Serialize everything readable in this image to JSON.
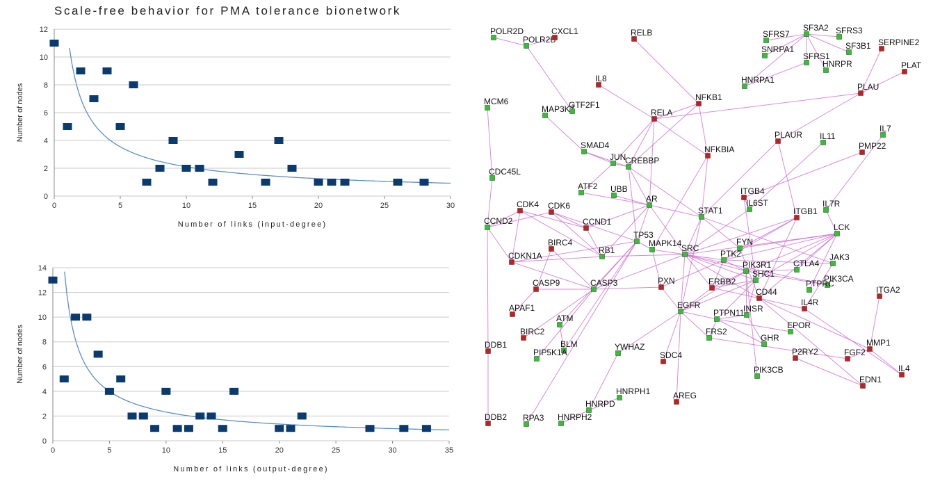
{
  "figure": {
    "title": "Scale-free behavior for PMA tolerance bionetwork"
  },
  "colors": {
    "marker": "#0b3a6e",
    "fit": "#5b8ec4",
    "grid": "#c8c8c8",
    "edge": "#cc6fd0",
    "gene_green": "#2ec42e",
    "gene_red": "#c41e1e"
  },
  "chart_data": [
    {
      "type": "scatter",
      "title": "",
      "xlabel": "Number of links (input-degree)",
      "ylabel": "Number of nodes",
      "xlim": [
        0,
        30
      ],
      "ylim": [
        0,
        12
      ],
      "xticks": [
        0,
        5,
        10,
        15,
        20,
        25,
        30
      ],
      "yticks": [
        0,
        2,
        4,
        6,
        8,
        10,
        12
      ],
      "grid": true,
      "legend": "none",
      "points": [
        [
          0,
          11
        ],
        [
          1,
          5
        ],
        [
          2,
          9
        ],
        [
          3,
          7
        ],
        [
          4,
          9
        ],
        [
          5,
          5
        ],
        [
          6,
          8
        ],
        [
          7,
          1
        ],
        [
          8,
          2
        ],
        [
          9,
          4
        ],
        [
          10,
          2
        ],
        [
          11,
          2
        ],
        [
          12,
          1
        ],
        [
          14,
          3
        ],
        [
          16,
          1
        ],
        [
          17,
          4
        ],
        [
          18,
          2
        ],
        [
          20,
          1
        ],
        [
          21,
          1
        ],
        [
          22,
          1
        ],
        [
          26,
          1
        ],
        [
          28,
          1
        ]
      ],
      "fit": {
        "type": "power-law",
        "coefficient": 11.84,
        "exponent": -0.75
      }
    },
    {
      "type": "scatter",
      "title": "",
      "xlabel": "Number of links (output-degree)",
      "ylabel": "Number of nodes",
      "xlim": [
        0,
        35
      ],
      "ylim": [
        0,
        14
      ],
      "xticks": [
        0,
        5,
        10,
        15,
        20,
        25,
        30,
        35
      ],
      "yticks": [
        0,
        2,
        4,
        6,
        8,
        10,
        12,
        14
      ],
      "grid": true,
      "legend": "none",
      "points": [
        [
          0,
          13
        ],
        [
          1,
          5
        ],
        [
          2,
          10
        ],
        [
          3,
          10
        ],
        [
          4,
          7
        ],
        [
          5,
          4
        ],
        [
          6,
          5
        ],
        [
          7,
          2
        ],
        [
          8,
          2
        ],
        [
          9,
          1
        ],
        [
          10,
          4
        ],
        [
          11,
          1
        ],
        [
          12,
          1
        ],
        [
          13,
          2
        ],
        [
          14,
          2
        ],
        [
          15,
          1
        ],
        [
          16,
          4
        ],
        [
          20,
          1
        ],
        [
          21,
          1
        ],
        [
          22,
          2
        ],
        [
          28,
          1
        ],
        [
          31,
          1
        ],
        [
          33,
          1
        ]
      ],
      "fit": {
        "type": "power-law",
        "coefficient": 14.0,
        "exponent": -0.78
      }
    }
  ],
  "network": {
    "nodes": [
      {
        "id": "POLR2D",
        "c": "g"
      },
      {
        "id": "POLR2B",
        "c": "g"
      },
      {
        "id": "CXCL1",
        "c": "r"
      },
      {
        "id": "RELB",
        "c": "r"
      },
      {
        "id": "SFRS7",
        "c": "g"
      },
      {
        "id": "SF3A2",
        "c": "g"
      },
      {
        "id": "SFRS3",
        "c": "g"
      },
      {
        "id": "SNRPA1",
        "c": "g"
      },
      {
        "id": "SFRS1",
        "c": "g"
      },
      {
        "id": "SF3B1",
        "c": "g"
      },
      {
        "id": "HNRPR",
        "c": "g"
      },
      {
        "id": "SERPINE2",
        "c": "r"
      },
      {
        "id": "PLAT",
        "c": "r"
      },
      {
        "id": "HNRPA1",
        "c": "g"
      },
      {
        "id": "IL8",
        "c": "r"
      },
      {
        "id": "PLAU",
        "c": "r"
      },
      {
        "id": "MCM6",
        "c": "g"
      },
      {
        "id": "MAP3K7",
        "c": "g"
      },
      {
        "id": "GTF2F1",
        "c": "g"
      },
      {
        "id": "RELA",
        "c": "r"
      },
      {
        "id": "NFKB1",
        "c": "r"
      },
      {
        "id": "IL7",
        "c": "g"
      },
      {
        "id": "PLAUR",
        "c": "r"
      },
      {
        "id": "IL11",
        "c": "g"
      },
      {
        "id": "PMP22",
        "c": "r"
      },
      {
        "id": "SMAD4",
        "c": "g"
      },
      {
        "id": "NFKBIA",
        "c": "r"
      },
      {
        "id": "JUN",
        "c": "g"
      },
      {
        "id": "CREBBP",
        "c": "g"
      },
      {
        "id": "CDC45L",
        "c": "g"
      },
      {
        "id": "ATF2",
        "c": "g"
      },
      {
        "id": "UBB",
        "c": "g"
      },
      {
        "id": "ITGB4",
        "c": "r"
      },
      {
        "id": "CDK4",
        "c": "r"
      },
      {
        "id": "CDK6",
        "c": "r"
      },
      {
        "id": "AR",
        "c": "g"
      },
      {
        "id": "IL6ST",
        "c": "g"
      },
      {
        "id": "IL7R",
        "c": "g"
      },
      {
        "id": "STAT1",
        "c": "g"
      },
      {
        "id": "ITGB1",
        "c": "r"
      },
      {
        "id": "CCND2",
        "c": "g"
      },
      {
        "id": "CCND1",
        "c": "r"
      },
      {
        "id": "LCK",
        "c": "g"
      },
      {
        "id": "TP53",
        "c": "g"
      },
      {
        "id": "FYN",
        "c": "g"
      },
      {
        "id": "BIRC4",
        "c": "r"
      },
      {
        "id": "MAPK14",
        "c": "g"
      },
      {
        "id": "SRC",
        "c": "g"
      },
      {
        "id": "PTK2",
        "c": "g"
      },
      {
        "id": "RB1",
        "c": "g"
      },
      {
        "id": "JAK3",
        "c": "g"
      },
      {
        "id": "CDKN1A",
        "c": "r"
      },
      {
        "id": "PIK3R1",
        "c": "g"
      },
      {
        "id": "CTLA4",
        "c": "g"
      },
      {
        "id": "PIK3CA",
        "c": "g"
      },
      {
        "id": "SHC1",
        "c": "g"
      },
      {
        "id": "PTPRC",
        "c": "g"
      },
      {
        "id": "CASP9",
        "c": "r"
      },
      {
        "id": "PXN",
        "c": "r"
      },
      {
        "id": "ERBB2",
        "c": "r"
      },
      {
        "id": "CASP3",
        "c": "g"
      },
      {
        "id": "CD44",
        "c": "r"
      },
      {
        "id": "ITGA2",
        "c": "r"
      },
      {
        "id": "IL4R",
        "c": "r"
      },
      {
        "id": "APAF1",
        "c": "r"
      },
      {
        "id": "EGFR",
        "c": "g"
      },
      {
        "id": "PTPN11",
        "c": "g"
      },
      {
        "id": "INSR",
        "c": "g"
      },
      {
        "id": "ATM",
        "c": "g"
      },
      {
        "id": "EPOR",
        "c": "g"
      },
      {
        "id": "BIRC2",
        "c": "r"
      },
      {
        "id": "FRS2",
        "c": "g"
      },
      {
        "id": "GHR",
        "c": "g"
      },
      {
        "id": "MMP1",
        "c": "r"
      },
      {
        "id": "DDB1",
        "c": "r"
      },
      {
        "id": "BLM",
        "c": "g"
      },
      {
        "id": "P2RY2",
        "c": "r"
      },
      {
        "id": "FGF2",
        "c": "r"
      },
      {
        "id": "PIP5K1A",
        "c": "g"
      },
      {
        "id": "YWHAZ",
        "c": "g"
      },
      {
        "id": "SDC4",
        "c": "r"
      },
      {
        "id": "IL4",
        "c": "r"
      },
      {
        "id": "PIK3CB",
        "c": "g"
      },
      {
        "id": "EDN1",
        "c": "r"
      },
      {
        "id": "HNRPH1",
        "c": "g"
      },
      {
        "id": "AREG",
        "c": "r"
      },
      {
        "id": "HNRPD",
        "c": "g"
      },
      {
        "id": "DDB2",
        "c": "r"
      },
      {
        "id": "RPA3",
        "c": "g"
      },
      {
        "id": "HNRPH2",
        "c": "g"
      }
    ],
    "edges": [
      [
        "POLR2B",
        "GTF2F1"
      ],
      [
        "CXCL1",
        "POLR2B"
      ],
      [
        "POLR2D",
        "POLR2B"
      ],
      [
        "IL8",
        "RELA"
      ],
      [
        "RELB",
        "NFKB1"
      ],
      [
        "RELA",
        "NFKB1"
      ],
      [
        "RELA",
        "NFKBIA"
      ],
      [
        "NFKB1",
        "NFKBIA"
      ],
      [
        "SF3A2",
        "SFRS7"
      ],
      [
        "SF3A2",
        "SFRS3"
      ],
      [
        "SF3A2",
        "SF3B1"
      ],
      [
        "SF3A2",
        "SFRS1"
      ],
      [
        "SF3A2",
        "SNRPA1"
      ],
      [
        "SF3A2",
        "HNRPR"
      ],
      [
        "SF3A2",
        "HNRPA1"
      ],
      [
        "SFRS1",
        "HNRPA1"
      ],
      [
        "PLAU",
        "PLAUR"
      ],
      [
        "PLAT",
        "PLAU"
      ],
      [
        "SERPINE2",
        "PLAU"
      ],
      [
        "PLAU",
        "RELA"
      ],
      [
        "MCM6",
        "CDC45L"
      ],
      [
        "CDC45L",
        "CCND2"
      ],
      [
        "CCND2",
        "CDK4"
      ],
      [
        "CCND2",
        "CDK6"
      ],
      [
        "CDK4",
        "CCND1"
      ],
      [
        "CDK6",
        "CCND1"
      ],
      [
        "CDK4",
        "RB1"
      ],
      [
        "CDK6",
        "RB1"
      ],
      [
        "CCND1",
        "RB1"
      ],
      [
        "RB1",
        "CDKN1A"
      ],
      [
        "CDKN1A",
        "TP53"
      ],
      [
        "CDKN1A",
        "CDK4"
      ],
      [
        "CCND2",
        "CDKN1A"
      ],
      [
        "CDKN1A",
        "CASP3"
      ],
      [
        "TP53",
        "AR"
      ],
      [
        "TP53",
        "MAPK14"
      ],
      [
        "TP53",
        "ATM"
      ],
      [
        "TP53",
        "CASP3"
      ],
      [
        "CASP9",
        "CASP3"
      ],
      [
        "CASP9",
        "APAF1"
      ],
      [
        "CASP3",
        "BIRC4"
      ],
      [
        "CASP3",
        "BIRC2"
      ],
      [
        "CASP3",
        "PXN"
      ],
      [
        "ATM",
        "BLM"
      ],
      [
        "BLM",
        "TP53"
      ],
      [
        "DDB1",
        "DDB2"
      ],
      [
        "DDB1",
        "CCND2"
      ],
      [
        "MAP3K7",
        "SMAD4"
      ],
      [
        "SMAD4",
        "JUN"
      ],
      [
        "SMAD4",
        "CREBBP"
      ],
      [
        "JUN",
        "CREBBP"
      ],
      [
        "JUN",
        "ATF2"
      ],
      [
        "JUN",
        "RELA"
      ],
      [
        "CREBBP",
        "RELA"
      ],
      [
        "CREBBP",
        "NFKB1"
      ],
      [
        "CREBBP",
        "AR"
      ],
      [
        "CREBBP",
        "TP53"
      ],
      [
        "CREBBP",
        "STAT1"
      ],
      [
        "ATF2",
        "AR"
      ],
      [
        "UBB",
        "AR"
      ],
      [
        "AR",
        "SRC"
      ],
      [
        "AR",
        "STAT1"
      ],
      [
        "AR",
        "RB1"
      ],
      [
        "AR",
        "CCND1"
      ],
      [
        "STAT1",
        "SRC"
      ],
      [
        "STAT1",
        "JAK3"
      ],
      [
        "STAT1",
        "EGFR"
      ],
      [
        "IL7R",
        "LCK"
      ],
      [
        "ITGB1",
        "PTK2"
      ],
      [
        "ITGB1",
        "FYN"
      ],
      [
        "ITGB1",
        "SRC"
      ],
      [
        "ITGB4",
        "SHC1"
      ],
      [
        "IL6ST",
        "SRC"
      ],
      [
        "LCK",
        "FYN"
      ],
      [
        "LCK",
        "SRC"
      ],
      [
        "LCK",
        "PTK2"
      ],
      [
        "LCK",
        "CTLA4"
      ],
      [
        "LCK",
        "PTPRC"
      ],
      [
        "LCK",
        "SHC1"
      ],
      [
        "LCK",
        "PIK3R1"
      ],
      [
        "LCK",
        "CD44"
      ],
      [
        "SRC",
        "PTK2"
      ],
      [
        "SRC",
        "PIK3R1"
      ],
      [
        "SRC",
        "SHC1"
      ],
      [
        "SRC",
        "EGFR"
      ],
      [
        "SRC",
        "ERBB2"
      ],
      [
        "SRC",
        "CD44"
      ],
      [
        "PTK2",
        "PXN"
      ],
      [
        "PTK2",
        "PIK3R1"
      ],
      [
        "PTK2",
        "ERBB2"
      ],
      [
        "PIK3R1",
        "INSR"
      ],
      [
        "PIK3R1",
        "ERBB2"
      ],
      [
        "PIK3R1",
        "PIK3CA"
      ],
      [
        "PIK3R1",
        "CTLA4"
      ],
      [
        "PIK3R1",
        "EGFR"
      ],
      [
        "SHC1",
        "EGFR"
      ],
      [
        "SHC1",
        "ERBB2"
      ],
      [
        "SHC1",
        "INSR"
      ],
      [
        "SHC1",
        "PTPN11"
      ],
      [
        "EGFR",
        "PTPN11"
      ],
      [
        "EGFR",
        "ERBB2"
      ],
      [
        "EGFR",
        "FRS2"
      ],
      [
        "EGFR",
        "YWHAZ"
      ],
      [
        "EGFR",
        "SDC4"
      ],
      [
        "PTPN11",
        "INSR"
      ],
      [
        "PTPN11",
        "GHR"
      ],
      [
        "PTPN11",
        "EPOR"
      ],
      [
        "PTPN11",
        "FRS2"
      ],
      [
        "INSR",
        "GHR"
      ],
      [
        "FRS2",
        "FGF2"
      ],
      [
        "FGF2",
        "MMP1"
      ],
      [
        "MMP1",
        "ITGA2"
      ],
      [
        "MMP1",
        "IL4"
      ],
      [
        "IL4",
        "IL4R"
      ],
      [
        "IL4R",
        "CD44"
      ],
      [
        "CD44",
        "MMP1"
      ],
      [
        "EDN1",
        "P2RY2"
      ],
      [
        "EDN1",
        "CD44"
      ],
      [
        "JAK3",
        "IL4R"
      ],
      [
        "JAK3",
        "PTK2"
      ],
      [
        "PIK3CB",
        "PIK3R1"
      ],
      [
        "FYN",
        "PTK2"
      ],
      [
        "FYN",
        "CD44"
      ],
      [
        "PIK3CA",
        "SRC"
      ],
      [
        "STAT1",
        "FYN"
      ],
      [
        "NFKBIA",
        "STAT1"
      ],
      [
        "NFKBIA",
        "MAPK14"
      ],
      [
        "RELA",
        "AR"
      ],
      [
        "HNRPH1",
        "HNRPD"
      ],
      [
        "HNRPD",
        "HNRPH2"
      ],
      [
        "HNRPD",
        "YWHAZ"
      ],
      [
        "AREG",
        "EGFR"
      ],
      [
        "RPA3",
        "TP53"
      ],
      [
        "PIP5K1A",
        "CASP3"
      ],
      [
        "IL11",
        "IL6ST"
      ],
      [
        "IL7",
        "IL7R"
      ],
      [
        "PMP22",
        "ITGB4"
      ],
      [
        "MAPK14",
        "SRC"
      ],
      [
        "MAPK14",
        "PXN"
      ],
      [
        "ERBB2",
        "CD44"
      ],
      [
        "RB1",
        "SRC"
      ],
      [
        "CASP3",
        "SRC"
      ],
      [
        "PXN",
        "EGFR"
      ],
      [
        "CDK6",
        "TP53"
      ],
      [
        "BIRC4",
        "CASP9"
      ],
      [
        "ITGB1",
        "CD44"
      ],
      [
        "ITGB4",
        "IL6ST"
      ],
      [
        "PLAUR",
        "ITGB1"
      ],
      [
        "PLAUR",
        "STAT1"
      ]
    ]
  }
}
